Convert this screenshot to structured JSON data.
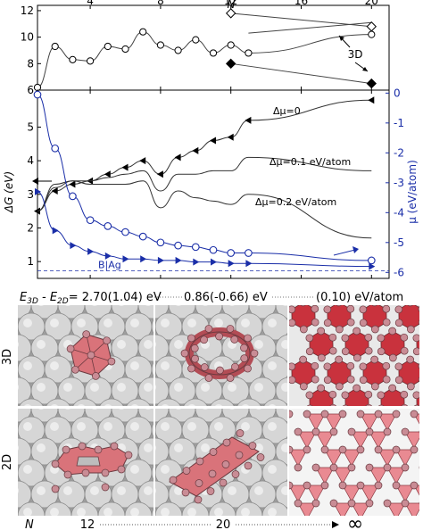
{
  "chart_data": [
    {
      "type": "line",
      "xlabel": "N",
      "ylabel": "",
      "xlim": [
        1,
        21
      ],
      "ylim": [
        6,
        12.4
      ],
      "x_ticks": [
        "4",
        "8",
        "12",
        "16",
        "20"
      ],
      "y_ticks": [
        "6",
        "8",
        "10",
        "12"
      ],
      "annotations": [
        "3D"
      ],
      "series": [
        {
          "name": "",
          "marker": "circle",
          "x": [
            1,
            2,
            3,
            4,
            5,
            6,
            7,
            8,
            9,
            10,
            11,
            12,
            13,
            20
          ],
          "y": [
            6.2,
            9.3,
            8.3,
            8.2,
            9.3,
            9.1,
            10.4,
            9.4,
            9.0,
            9.8,
            8.8,
            9.4,
            8.8,
            10.2
          ]
        },
        {
          "name": "",
          "marker": "line",
          "x": [
            13,
            20
          ],
          "y": [
            10.3,
            11.1
          ]
        },
        {
          "name": "3D",
          "marker": "diamond-open",
          "x": [
            12,
            20
          ],
          "y": [
            11.8,
            10.8
          ]
        },
        {
          "name": "3D",
          "marker": "diamond-filled",
          "x": [
            12,
            20
          ],
          "y": [
            8.0,
            6.5
          ]
        }
      ]
    },
    {
      "type": "line",
      "xlabel": "",
      "ylabel": "ΔG (eV)",
      "y2label": "μ (eV/atom)",
      "xlim": [
        1,
        21
      ],
      "ylim": [
        0.5,
        6.1
      ],
      "y2lim": [
        -6.2,
        0.1
      ],
      "y_ticks": [
        "1",
        "2",
        "3",
        "4",
        "5"
      ],
      "y2_ticks": [
        "0",
        "-1",
        "-2",
        "-3",
        "-4",
        "-5",
        "-6"
      ],
      "annotations": [
        "Δμ=0",
        "Δμ=0.1 eV/atom",
        "Δμ=0.2 eV/atom",
        "B|Ag"
      ],
      "series": [
        {
          "name": "Δμ=0",
          "marker": "triangle-left",
          "x": [
            1,
            2,
            3,
            4,
            5,
            6,
            7,
            8,
            9,
            10,
            11,
            12,
            13,
            20
          ],
          "y": [
            2.5,
            3.1,
            3.3,
            3.4,
            3.6,
            3.8,
            4.0,
            3.6,
            4.1,
            4.3,
            4.6,
            4.7,
            5.2,
            5.8
          ]
        },
        {
          "name": "Δμ=0.1 eV/atom",
          "marker": "line",
          "x": [
            1,
            2,
            3,
            4,
            5,
            6,
            7,
            8,
            9,
            10,
            11,
            12,
            13,
            20
          ],
          "y": [
            2.5,
            3.2,
            3.4,
            3.4,
            3.5,
            3.6,
            3.7,
            3.1,
            3.6,
            3.6,
            3.7,
            3.7,
            4.1,
            3.7
          ]
        },
        {
          "name": "Δμ=0.2 eV/atom",
          "marker": "line",
          "x": [
            1,
            2,
            3,
            4,
            5,
            6,
            7,
            8,
            9,
            10,
            11,
            12,
            13,
            20
          ],
          "y": [
            2.5,
            3.3,
            3.4,
            3.3,
            3.3,
            3.3,
            3.4,
            2.6,
            3.1,
            2.9,
            2.8,
            2.7,
            3.0,
            1.7
          ]
        },
        {
          "name": "μ",
          "marker": "circle",
          "axis": "right",
          "x": [
            1,
            2,
            3,
            4,
            5,
            6,
            7,
            8,
            9,
            10,
            11,
            12,
            13,
            20
          ],
          "y": [
            -0.05,
            -1.85,
            -3.45,
            -4.25,
            -4.45,
            -4.65,
            -4.8,
            -5.0,
            -5.1,
            -5.15,
            -5.25,
            -5.35,
            -5.35,
            -5.6
          ]
        },
        {
          "name": "",
          "marker": "triangle-right",
          "axis": "right",
          "x": [
            1,
            2,
            3,
            4,
            5,
            6,
            7,
            8,
            9,
            10,
            11,
            12,
            13,
            20
          ],
          "y": [
            -3.3,
            -4.6,
            -5.1,
            -5.3,
            -5.45,
            -5.55,
            -5.55,
            -5.6,
            -5.6,
            -5.65,
            -5.65,
            -5.7,
            -5.7,
            -5.8
          ]
        }
      ]
    }
  ],
  "energy_row": {
    "prefix": "E",
    "sub1": "3D",
    "mid": " - E",
    "sub2": "2D",
    "eq": "= 2.70(1.04) eV",
    "val2": "0.86(-0.66) eV",
    "val3": "(0.10) eV/atom"
  },
  "structures": {
    "row_labels": [
      "3D",
      "2D"
    ],
    "bottom_axis": {
      "label": "N",
      "left": "12",
      "mid": "20",
      "end": "∞"
    }
  },
  "colors": {
    "blue": "#1a2ea8",
    "black": "#000000",
    "cluster": "#d9737a",
    "bg_sphere": "#dcdcdc"
  }
}
